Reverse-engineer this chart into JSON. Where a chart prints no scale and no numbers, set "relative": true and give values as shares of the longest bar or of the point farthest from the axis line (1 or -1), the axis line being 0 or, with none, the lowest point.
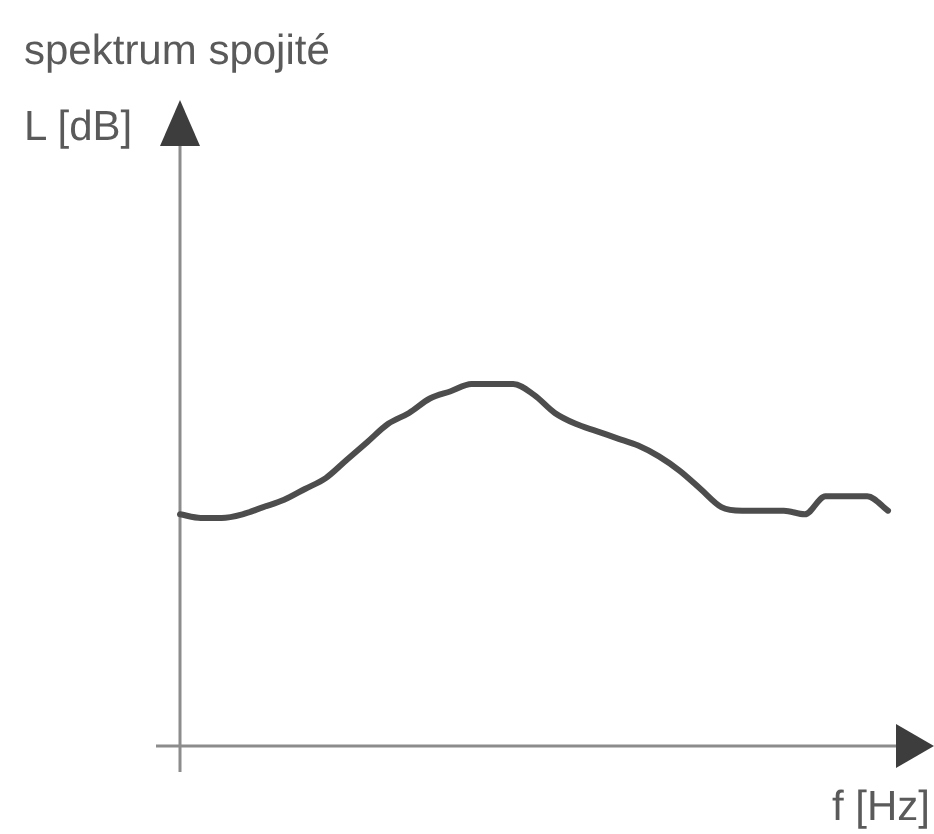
{
  "chart_data": {
    "type": "line",
    "title": "spektrum spojité",
    "xlabel": "f [Hz]",
    "annotations": [
      "L [dB]"
    ],
    "categories": [
      null,
      null,
      null,
      null,
      null,
      null,
      null,
      null,
      null,
      null,
      null,
      null,
      null,
      null,
      null,
      null,
      null,
      null,
      null,
      null,
      null,
      null,
      null,
      null,
      null,
      null,
      null,
      null,
      null,
      null,
      null,
      null,
      null,
      null,
      null
    ],
    "values": [
      0.64,
      0.63,
      0.63,
      0.64,
      0.66,
      0.68,
      0.71,
      0.74,
      0.79,
      0.84,
      0.89,
      0.92,
      0.96,
      0.98,
      1.0,
      1.0,
      1.0,
      0.97,
      0.92,
      0.89,
      0.87,
      0.85,
      0.83,
      0.8,
      0.76,
      0.71,
      0.66,
      0.65,
      0.65,
      0.65,
      0.64,
      0.69,
      0.69,
      0.69,
      0.65
    ],
    "color": "#4d4d4d",
    "relative": true,
    "marker": "none"
  }
}
